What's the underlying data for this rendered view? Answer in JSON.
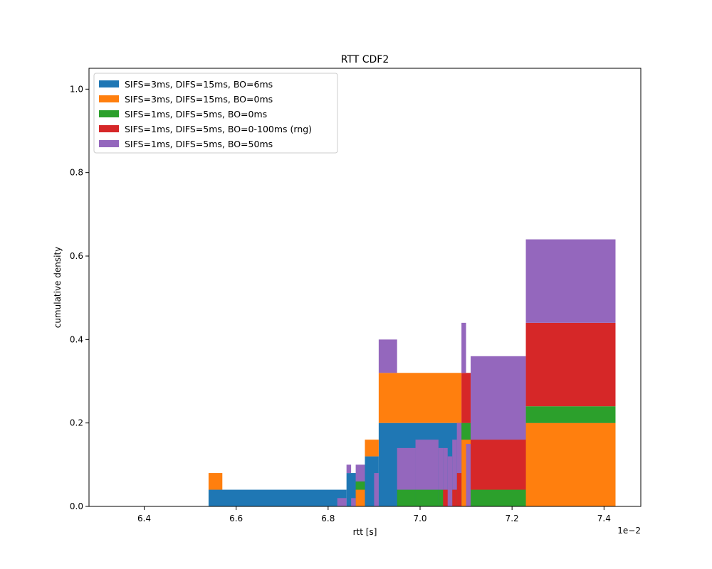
{
  "chart_data": {
    "type": "area",
    "title": "RTT CDF2",
    "xlabel": "rtt [s]",
    "ylabel": "cumulative density",
    "x_offset_label": "1e−2",
    "xlim": [
      6.28,
      7.48
    ],
    "ylim": [
      0.0,
      1.05
    ],
    "xticks": [
      6.4,
      6.6,
      6.8,
      7.0,
      7.2,
      7.4
    ],
    "xtick_labels": [
      "6.4",
      "6.6",
      "6.8",
      "7.0",
      "7.2",
      "7.4"
    ],
    "yticks": [
      0.0,
      0.2,
      0.4,
      0.6,
      0.8,
      1.0
    ],
    "ytick_labels": [
      "0.0",
      "0.2",
      "0.4",
      "0.6",
      "0.8",
      "1.0"
    ],
    "stacked": true,
    "step": true,
    "grid": false,
    "legend_position": "top-left",
    "series": [
      {
        "name": "SIFS=3ms, DIFS=15ms, BO=6ms",
        "color": "#1f77b4",
        "x": [
          6.54,
          6.84,
          6.88,
          6.91,
          7.425
        ],
        "y": [
          0.04,
          0.08,
          0.12,
          0.2,
          0.2
        ]
      },
      {
        "name": "SIFS=3ms, DIFS=15ms, BO=0ms",
        "color": "#ff7f0e",
        "x": [
          6.53,
          6.54,
          6.57,
          6.84,
          6.86,
          6.88,
          6.91,
          7.09,
          7.23,
          7.425
        ],
        "y": [
          0.0,
          0.04,
          0.0,
          0.0,
          0.04,
          0.04,
          0.12,
          0.16,
          0.2,
          0.2
        ]
      },
      {
        "name": "SIFS=1ms, DIFS=5ms, BO=0ms",
        "color": "#2ca02c",
        "x": [
          6.85,
          6.86,
          6.88,
          6.91,
          6.95,
          6.99,
          7.04,
          7.09,
          7.11,
          7.23,
          7.425
        ],
        "y": [
          0.0,
          0.02,
          0.0,
          0.0,
          0.04,
          0.04,
          0.04,
          0.04,
          0.04,
          0.04,
          0.04
        ]
      },
      {
        "name": "SIFS=1ms, DIFS=5ms, BO=0-100ms (rng)",
        "color": "#d62728",
        "x": [
          7.05,
          7.07,
          7.08,
          7.09,
          7.11,
          7.23,
          7.425
        ],
        "y": [
          0.04,
          0.04,
          0.08,
          0.12,
          0.12,
          0.2,
          0.2
        ]
      },
      {
        "name": "SIFS=1ms, DIFS=5ms, BO=50ms",
        "color": "#9467bd",
        "x": [
          6.82,
          6.84,
          6.85,
          6.86,
          6.88,
          6.9,
          6.91,
          6.95,
          6.99,
          7.04,
          7.05,
          7.06,
          7.07,
          7.08,
          7.09,
          7.1,
          7.11,
          7.23,
          7.425
        ],
        "y": [
          0.02,
          0.02,
          0.02,
          0.04,
          0.0,
          0.08,
          0.08,
          0.1,
          0.12,
          0.1,
          0.1,
          0.12,
          0.12,
          0.12,
          0.12,
          0.15,
          0.2,
          0.2,
          0.2
        ]
      }
    ]
  }
}
